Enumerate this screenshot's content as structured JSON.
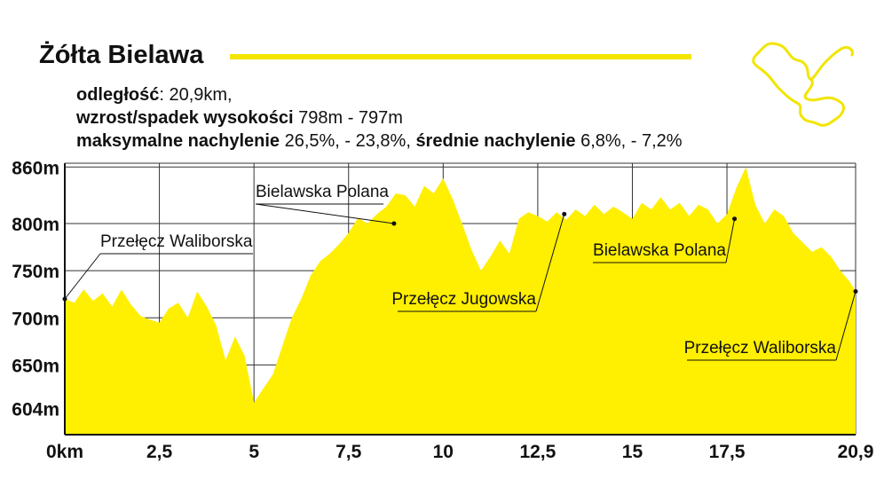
{
  "header": {
    "title": "Żółta Bielawa",
    "stats": [
      {
        "label": "odległość",
        "value": ": 20,9km,"
      },
      {
        "label": "wzrost/spadek wysokości",
        "value": " 798m - 797m"
      },
      {
        "label": "maksymalne nachylenie",
        "value": " 26,5%, - 23,8%, ",
        "label2": "średnie nachylenie",
        "value2": " 6,8%, - 7,2%"
      }
    ]
  },
  "colors": {
    "fill": "#FFEF00",
    "accent": "#F2E500",
    "text": "#111111",
    "grid": "#333333"
  },
  "route_map_icon": "route-outline-icon",
  "chart_data": {
    "type": "area",
    "xlabel": "",
    "ylabel": "",
    "xlim": [
      0,
      20.9
    ],
    "ylim": [
      576,
      864
    ],
    "grid": true,
    "x_ticks": [
      {
        "v": 0,
        "label": "0km"
      },
      {
        "v": 2.5,
        "label": "2,5"
      },
      {
        "v": 5,
        "label": "5"
      },
      {
        "v": 7.5,
        "label": "7,5"
      },
      {
        "v": 10,
        "label": "10"
      },
      {
        "v": 12.5,
        "label": "12,5"
      },
      {
        "v": 15,
        "label": "15"
      },
      {
        "v": 17.5,
        "label": "17,5"
      },
      {
        "v": 20.9,
        "label": "20,9"
      }
    ],
    "y_ticks": [
      {
        "v": 604,
        "label": "604m"
      },
      {
        "v": 650,
        "label": "650m"
      },
      {
        "v": 700,
        "label": "700m"
      },
      {
        "v": 750,
        "label": "750m"
      },
      {
        "v": 800,
        "label": "800m"
      },
      {
        "v": 860,
        "label": "860m"
      }
    ],
    "series": [
      {
        "x": [
          0,
          0.25,
          0.5,
          0.75,
          1.0,
          1.25,
          1.5,
          1.75,
          2.0,
          2.25,
          2.5,
          2.75,
          3.0,
          3.25,
          3.5,
          3.75,
          4.0,
          4.25,
          4.5,
          4.75,
          5.0,
          5.25,
          5.5,
          5.75,
          6.0,
          6.25,
          6.5,
          6.75,
          7.0,
          7.25,
          7.5,
          7.75,
          8.0,
          8.25,
          8.5,
          8.75,
          9.0,
          9.25,
          9.5,
          9.75,
          10.0,
          10.25,
          10.5,
          10.75,
          11.0,
          11.25,
          11.5,
          11.75,
          12.0,
          12.25,
          12.5,
          12.75,
          13.0,
          13.25,
          13.5,
          13.75,
          14.0,
          14.25,
          14.5,
          14.75,
          15.0,
          15.25,
          15.5,
          15.75,
          16.0,
          16.25,
          16.5,
          16.75,
          17.0,
          17.25,
          17.5,
          17.75,
          18.0,
          18.25,
          18.5,
          18.75,
          19.0,
          19.25,
          19.5,
          19.75,
          20.0,
          20.25,
          20.5,
          20.75,
          20.9
        ],
        "y": [
          720,
          716,
          730,
          718,
          726,
          712,
          730,
          714,
          702,
          698,
          695,
          710,
          716,
          700,
          728,
          712,
          692,
          655,
          680,
          660,
          610,
          625,
          640,
          670,
          700,
          720,
          745,
          760,
          768,
          778,
          790,
          806,
          800,
          810,
          818,
          832,
          830,
          818,
          840,
          832,
          848,
          826,
          800,
          772,
          750,
          765,
          782,
          768,
          805,
          812,
          808,
          802,
          812,
          804,
          815,
          808,
          820,
          810,
          818,
          812,
          805,
          822,
          815,
          828,
          815,
          822,
          808,
          820,
          815,
          800,
          810,
          838,
          860,
          820,
          800,
          815,
          808,
          790,
          780,
          770,
          775,
          765,
          750,
          738,
          728
        ]
      }
    ],
    "annotations": [
      {
        "text": "Przełęcz Waliborska",
        "x": 0,
        "y": 720
      },
      {
        "text": "Bielawska Polana",
        "x": 8.7,
        "y": 800
      },
      {
        "text": "Przełęcz Jugowska",
        "x": 13.2,
        "y": 810
      },
      {
        "text": "Bielawska Polana",
        "x": 17.7,
        "y": 805
      },
      {
        "text": "Przełęcz Waliborska",
        "x": 20.9,
        "y": 728
      }
    ]
  }
}
